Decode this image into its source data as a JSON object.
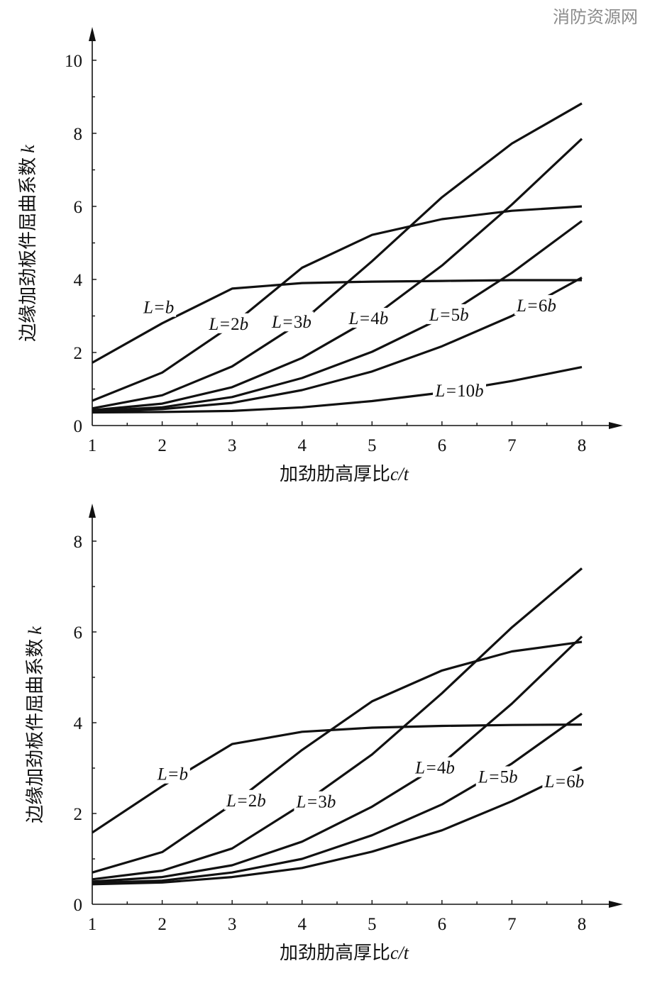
{
  "watermark": "消防资源网",
  "chart_data": [
    {
      "type": "line",
      "xlabel": "加劲肋高厚比c/t",
      "ylabel": "边缘加劲板件屈曲系数k",
      "xlim": [
        1,
        8
      ],
      "ylim": [
        0,
        10
      ],
      "xticks": [
        1,
        2,
        3,
        4,
        5,
        6,
        7,
        8
      ],
      "yticks": [
        0,
        2,
        4,
        6,
        8,
        10
      ],
      "grid": false,
      "series": [
        {
          "name": "L=b",
          "x": [
            1,
            2,
            3,
            4,
            5,
            6,
            7,
            8
          ],
          "y": [
            1.72,
            2.8,
            3.75,
            3.9,
            3.94,
            3.96,
            3.98,
            3.98
          ]
        },
        {
          "name": "L=2b",
          "x": [
            1,
            2,
            3,
            4,
            5,
            6,
            7,
            8
          ],
          "y": [
            0.68,
            1.45,
            2.75,
            4.32,
            5.22,
            5.65,
            5.88,
            6.0
          ]
        },
        {
          "name": "L=3b",
          "x": [
            1,
            2,
            3,
            4,
            5,
            6,
            7,
            8
          ],
          "y": [
            0.47,
            0.83,
            1.62,
            2.85,
            4.5,
            6.25,
            7.72,
            8.82
          ]
        },
        {
          "name": "L=4b",
          "x": [
            1,
            2,
            3,
            4,
            5,
            6,
            7,
            8
          ],
          "y": [
            0.42,
            0.6,
            1.05,
            1.85,
            2.95,
            4.38,
            6.05,
            7.85
          ]
        },
        {
          "name": "L=5b",
          "x": [
            1,
            2,
            3,
            4,
            5,
            6,
            7,
            8
          ],
          "y": [
            0.4,
            0.5,
            0.78,
            1.3,
            2.02,
            2.95,
            4.18,
            5.6
          ]
        },
        {
          "name": "L=6b",
          "x": [
            1,
            2,
            3,
            4,
            5,
            6,
            7,
            8
          ],
          "y": [
            0.38,
            0.45,
            0.62,
            0.97,
            1.48,
            2.17,
            3.0,
            4.05
          ]
        },
        {
          "name": "L=10b",
          "x": [
            1,
            2,
            3,
            4,
            5,
            6,
            7,
            8
          ],
          "y": [
            0.36,
            0.37,
            0.4,
            0.5,
            0.67,
            0.9,
            1.22,
            1.6
          ]
        }
      ],
      "labels": [
        {
          "text": "L=b",
          "x": 1.95,
          "y": 3.25
        },
        {
          "text": "L=2b",
          "x": 2.95,
          "y": 2.8
        },
        {
          "text": "L=3b",
          "x": 3.85,
          "y": 2.85
        },
        {
          "text": "L=4b",
          "x": 4.95,
          "y": 2.95
        },
        {
          "text": "L=5b",
          "x": 6.1,
          "y": 3.05
        },
        {
          "text": "L=6b",
          "x": 7.35,
          "y": 3.3
        },
        {
          "text": "L=10b",
          "x": 6.25,
          "y": 0.97
        }
      ]
    },
    {
      "type": "line",
      "xlabel": "加劲肋高厚比c/t",
      "ylabel": "边缘加劲板件屈曲系数k",
      "xlim": [
        1,
        8
      ],
      "ylim": [
        0,
        8
      ],
      "xticks": [
        1,
        2,
        3,
        4,
        5,
        6,
        7,
        8
      ],
      "yticks": [
        0,
        2,
        4,
        6,
        8
      ],
      "grid": false,
      "series": [
        {
          "name": "L=b",
          "x": [
            1,
            2,
            3,
            4,
            5,
            6,
            7,
            8
          ],
          "y": [
            1.58,
            2.6,
            3.53,
            3.8,
            3.89,
            3.93,
            3.95,
            3.96
          ]
        },
        {
          "name": "L=2b",
          "x": [
            1,
            2,
            3,
            4,
            5,
            6,
            7,
            8
          ],
          "y": [
            0.7,
            1.15,
            2.2,
            3.4,
            4.47,
            5.15,
            5.57,
            5.78
          ]
        },
        {
          "name": "L=3b",
          "x": [
            1,
            2,
            3,
            4,
            5,
            6,
            7,
            8
          ],
          "y": [
            0.55,
            0.74,
            1.23,
            2.2,
            3.3,
            4.65,
            6.1,
            7.4
          ]
        },
        {
          "name": "L=4b",
          "x": [
            1,
            2,
            3,
            4,
            5,
            6,
            7,
            8
          ],
          "y": [
            0.5,
            0.6,
            0.86,
            1.38,
            2.15,
            3.1,
            4.42,
            5.9
          ]
        },
        {
          "name": "L=5b",
          "x": [
            1,
            2,
            3,
            4,
            5,
            6,
            7,
            8
          ],
          "y": [
            0.47,
            0.52,
            0.7,
            1.0,
            1.52,
            2.2,
            3.1,
            4.2
          ]
        },
        {
          "name": "L=6b",
          "x": [
            1,
            2,
            3,
            4,
            5,
            6,
            7,
            8
          ],
          "y": [
            0.44,
            0.48,
            0.6,
            0.8,
            1.16,
            1.63,
            2.27,
            3.02
          ]
        }
      ],
      "labels": [
        {
          "text": "L=b",
          "x": 2.15,
          "y": 2.88
        },
        {
          "text": "L=2b",
          "x": 3.2,
          "y": 2.3
        },
        {
          "text": "L=3b",
          "x": 4.2,
          "y": 2.27
        },
        {
          "text": "L=4b",
          "x": 5.9,
          "y": 3.02
        },
        {
          "text": "L=5b",
          "x": 6.8,
          "y": 2.82
        },
        {
          "text": "L=6b",
          "x": 7.75,
          "y": 2.72
        }
      ]
    }
  ]
}
